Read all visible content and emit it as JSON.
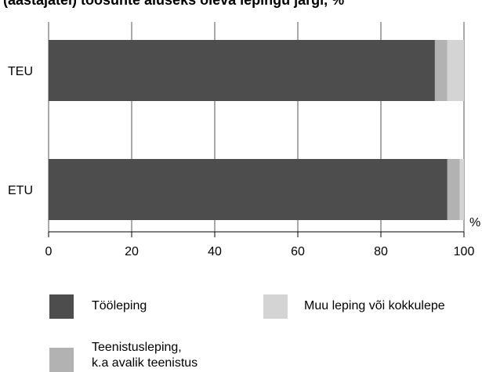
{
  "chart_data": {
    "type": "bar",
    "orientation": "horizontal",
    "stacked": true,
    "title": "(aastajatel) töösuhte aluseks oleva lepingu järgi, %",
    "unit_label": "%",
    "categories": [
      "TEU",
      "ETU"
    ],
    "series": [
      {
        "name": "Tööleping",
        "color": "#4d4d4d",
        "values": [
          93,
          96
        ]
      },
      {
        "name": "Teenistusleping, k.a avalik teenistus",
        "color": "#b2b2b2",
        "values": [
          3,
          3
        ]
      },
      {
        "name": "Muu leping või kokkulepe",
        "color": "#d4d4d4",
        "values": [
          4,
          1
        ]
      }
    ],
    "xlim": [
      0,
      100
    ],
    "xticks": [
      "0",
      "20",
      "40",
      "60",
      "80",
      "100"
    ],
    "grid": true,
    "legend_position": "bottom"
  }
}
